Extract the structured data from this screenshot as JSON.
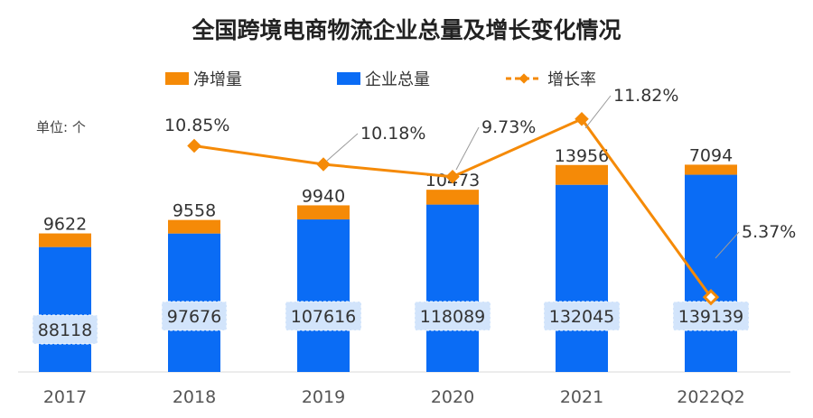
{
  "chart_data": {
    "type": "bar",
    "title": "全国跨境电商物流企业总量及增长变化情况",
    "unit": "单位: 个",
    "categories": [
      "2017",
      "2018",
      "2019",
      "2020",
      "2021",
      "2022Q2"
    ],
    "series": [
      {
        "name": "企业总量",
        "kind": "stacked-bar-base",
        "color": "#0A6CF5",
        "values": [
          88118,
          97676,
          107616,
          118089,
          132045,
          139139
        ]
      },
      {
        "name": "净增量",
        "kind": "stacked-bar-top",
        "color": "#F58A07",
        "values": [
          9622,
          9558,
          9940,
          10473,
          13956,
          7094
        ]
      },
      {
        "name": "增长率",
        "kind": "line",
        "color": "#F58A07",
        "values": [
          null,
          10.85,
          10.18,
          9.73,
          11.82,
          5.37
        ],
        "labels": [
          "",
          "10.85%",
          "10.18%",
          "9.73%",
          "11.82%",
          "5.37%"
        ]
      }
    ],
    "legend": {
      "position": "top-center",
      "items": [
        "净增量",
        "企业总量",
        "增长率"
      ]
    },
    "grid": false
  }
}
